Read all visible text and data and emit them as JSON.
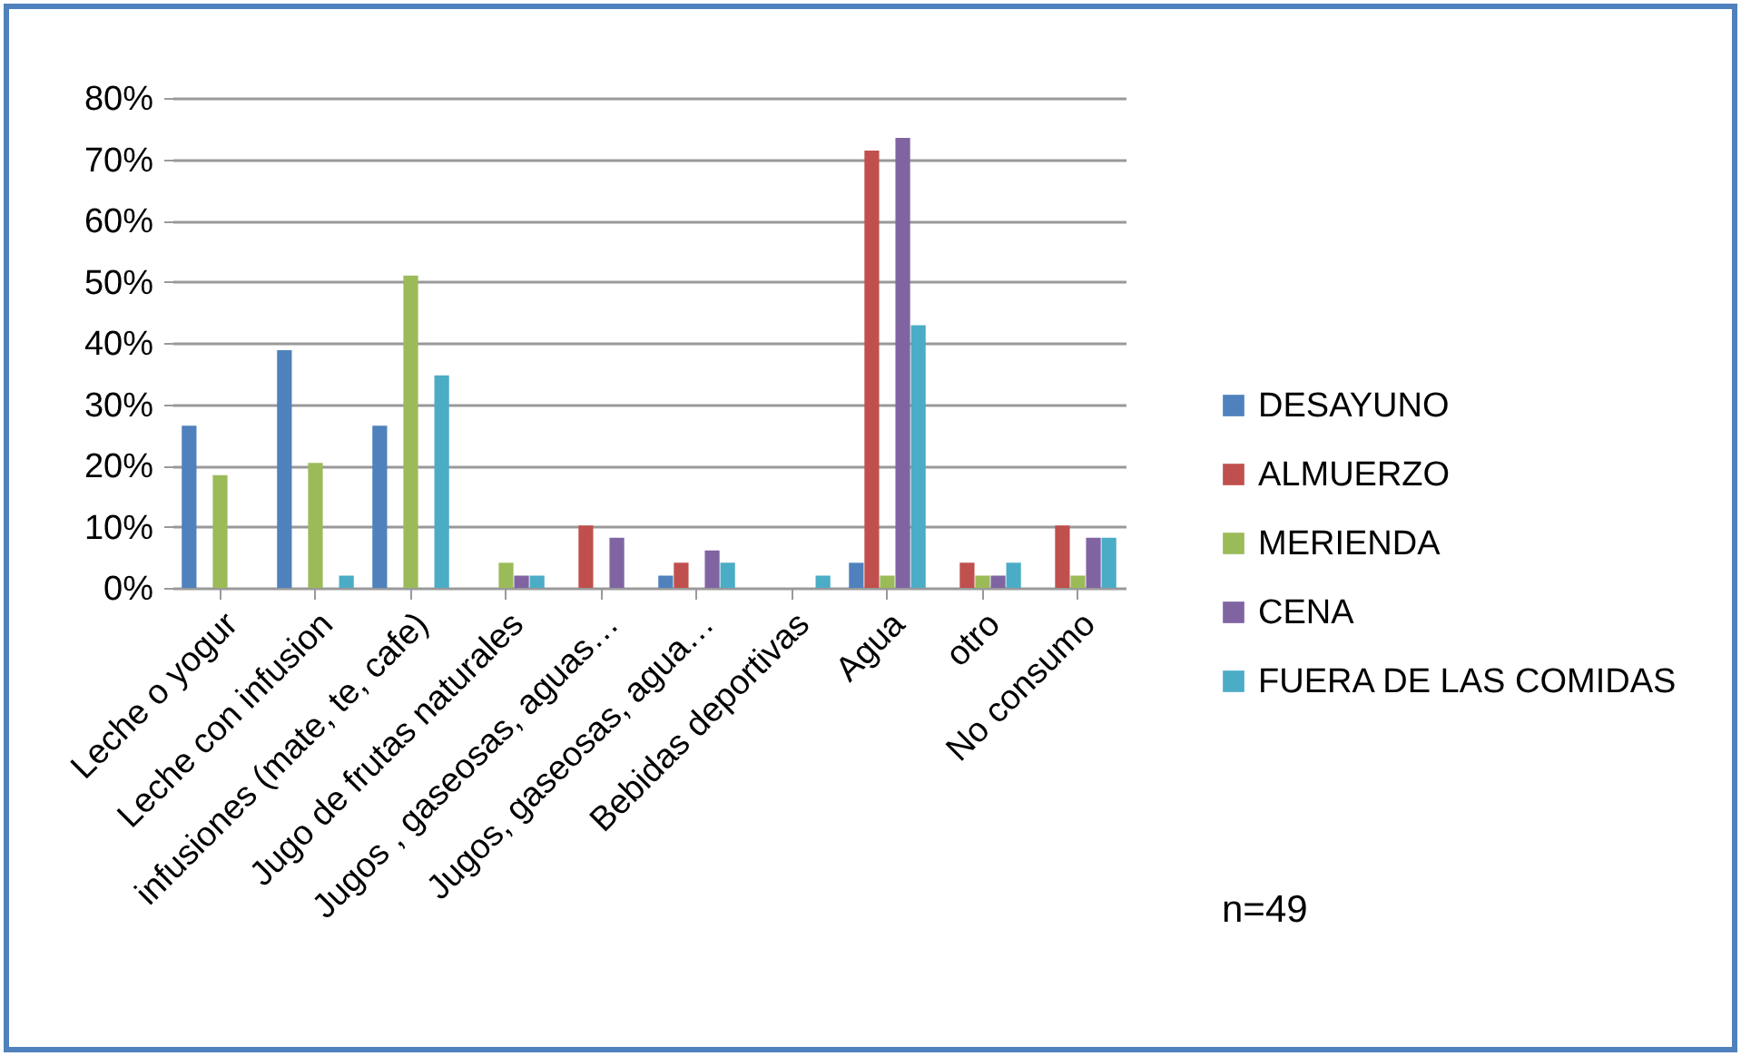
{
  "chart_data": {
    "type": "bar",
    "categories": [
      "Leche o yogur",
      "Leche con infusion",
      "infusiones (mate, te, cafe)",
      "Jugo de frutas naturales",
      "Jugos , gaseosas, aguas…",
      "Jugos, gaseosas, agua…",
      "Bebidas deportivas",
      "Agua",
      "otro",
      "No consumo"
    ],
    "series": [
      {
        "name": "DESAYUNO",
        "color": "#4f81bd",
        "values": [
          26.5,
          38.8,
          26.5,
          0,
          0,
          2.0,
          0,
          4.1,
          0,
          0
        ]
      },
      {
        "name": "ALMUERZO",
        "color": "#c0504d",
        "values": [
          0,
          0,
          0,
          0,
          10.2,
          4.1,
          0,
          71.4,
          4.1,
          10.2
        ]
      },
      {
        "name": "MERIENDA",
        "color": "#9bbb59",
        "values": [
          18.4,
          20.4,
          51.0,
          4.1,
          0,
          0,
          0,
          2.0,
          2.0,
          2.0
        ]
      },
      {
        "name": "CENA",
        "color": "#8064a2",
        "values": [
          0,
          0,
          0,
          2.0,
          8.2,
          6.1,
          0,
          73.5,
          2.0,
          8.2
        ]
      },
      {
        "name": "FUERA DE LAS COMIDAS",
        "color": "#4bacc6",
        "values": [
          0,
          2.0,
          34.7,
          2.0,
          0,
          4.1,
          2.0,
          42.9,
          4.1,
          8.2
        ]
      }
    ],
    "ylim": [
      0,
      80
    ],
    "yticks": [
      {
        "value": 0,
        "label": "0%"
      },
      {
        "value": 10,
        "label": "10%"
      },
      {
        "value": 20,
        "label": "20%"
      },
      {
        "value": 30,
        "label": "30%"
      },
      {
        "value": 40,
        "label": "40%"
      },
      {
        "value": 50,
        "label": "50%"
      },
      {
        "value": 60,
        "label": "60%"
      },
      {
        "value": 70,
        "label": "70%"
      },
      {
        "value": 80,
        "label": "80%"
      }
    ],
    "grid": "y",
    "legend": "right",
    "annotations": [
      "n=49"
    ]
  }
}
